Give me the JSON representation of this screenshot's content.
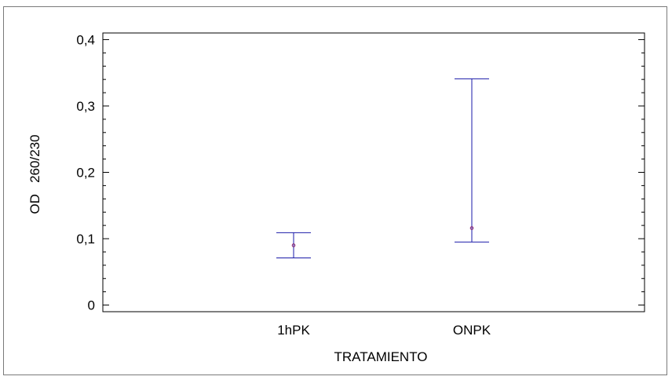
{
  "chart_data": {
    "type": "errorbar",
    "title": "",
    "xlabel": "TRATAMIENTO",
    "ylabel": "OD   260/230",
    "categories": [
      "1hPK",
      "ONPK"
    ],
    "series": [
      {
        "values": [
          0.09,
          0.116
        ],
        "lower": [
          0.071,
          0.095
        ],
        "upper": [
          0.109,
          0.341
        ]
      }
    ],
    "ylim": [
      -0.01,
      0.41
    ],
    "yticks": [
      0,
      0.1,
      0.2,
      0.3,
      0.4
    ],
    "ytick_labels": [
      "0",
      "0,1",
      "0,2",
      "0,3",
      "0,4"
    ],
    "grid": false,
    "colors": {
      "interval": "#1a1aa8",
      "point": "#8a1a6a",
      "axis": "#000000"
    }
  }
}
